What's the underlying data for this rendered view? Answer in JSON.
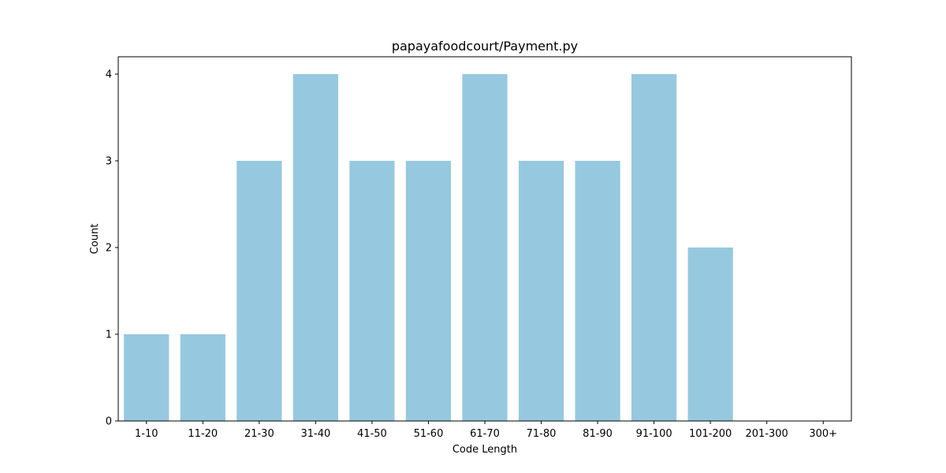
{
  "chart_data": {
    "type": "bar",
    "title": "papayafoodcourt/Payment.py",
    "xlabel": "Code Length",
    "ylabel": "Count",
    "categories": [
      "1-10",
      "11-20",
      "21-30",
      "31-40",
      "41-50",
      "51-60",
      "61-70",
      "71-80",
      "81-90",
      "91-100",
      "101-200",
      "201-300",
      "300+"
    ],
    "values": [
      1,
      1,
      3,
      4,
      3,
      3,
      4,
      3,
      3,
      4,
      2,
      0,
      0
    ],
    "ylim": [
      0,
      4.2
    ],
    "yticks": [
      "0",
      "1",
      "2",
      "3",
      "4"
    ],
    "grid": false,
    "colors": {
      "bar": "#96c9df",
      "axis": "#000000"
    }
  }
}
